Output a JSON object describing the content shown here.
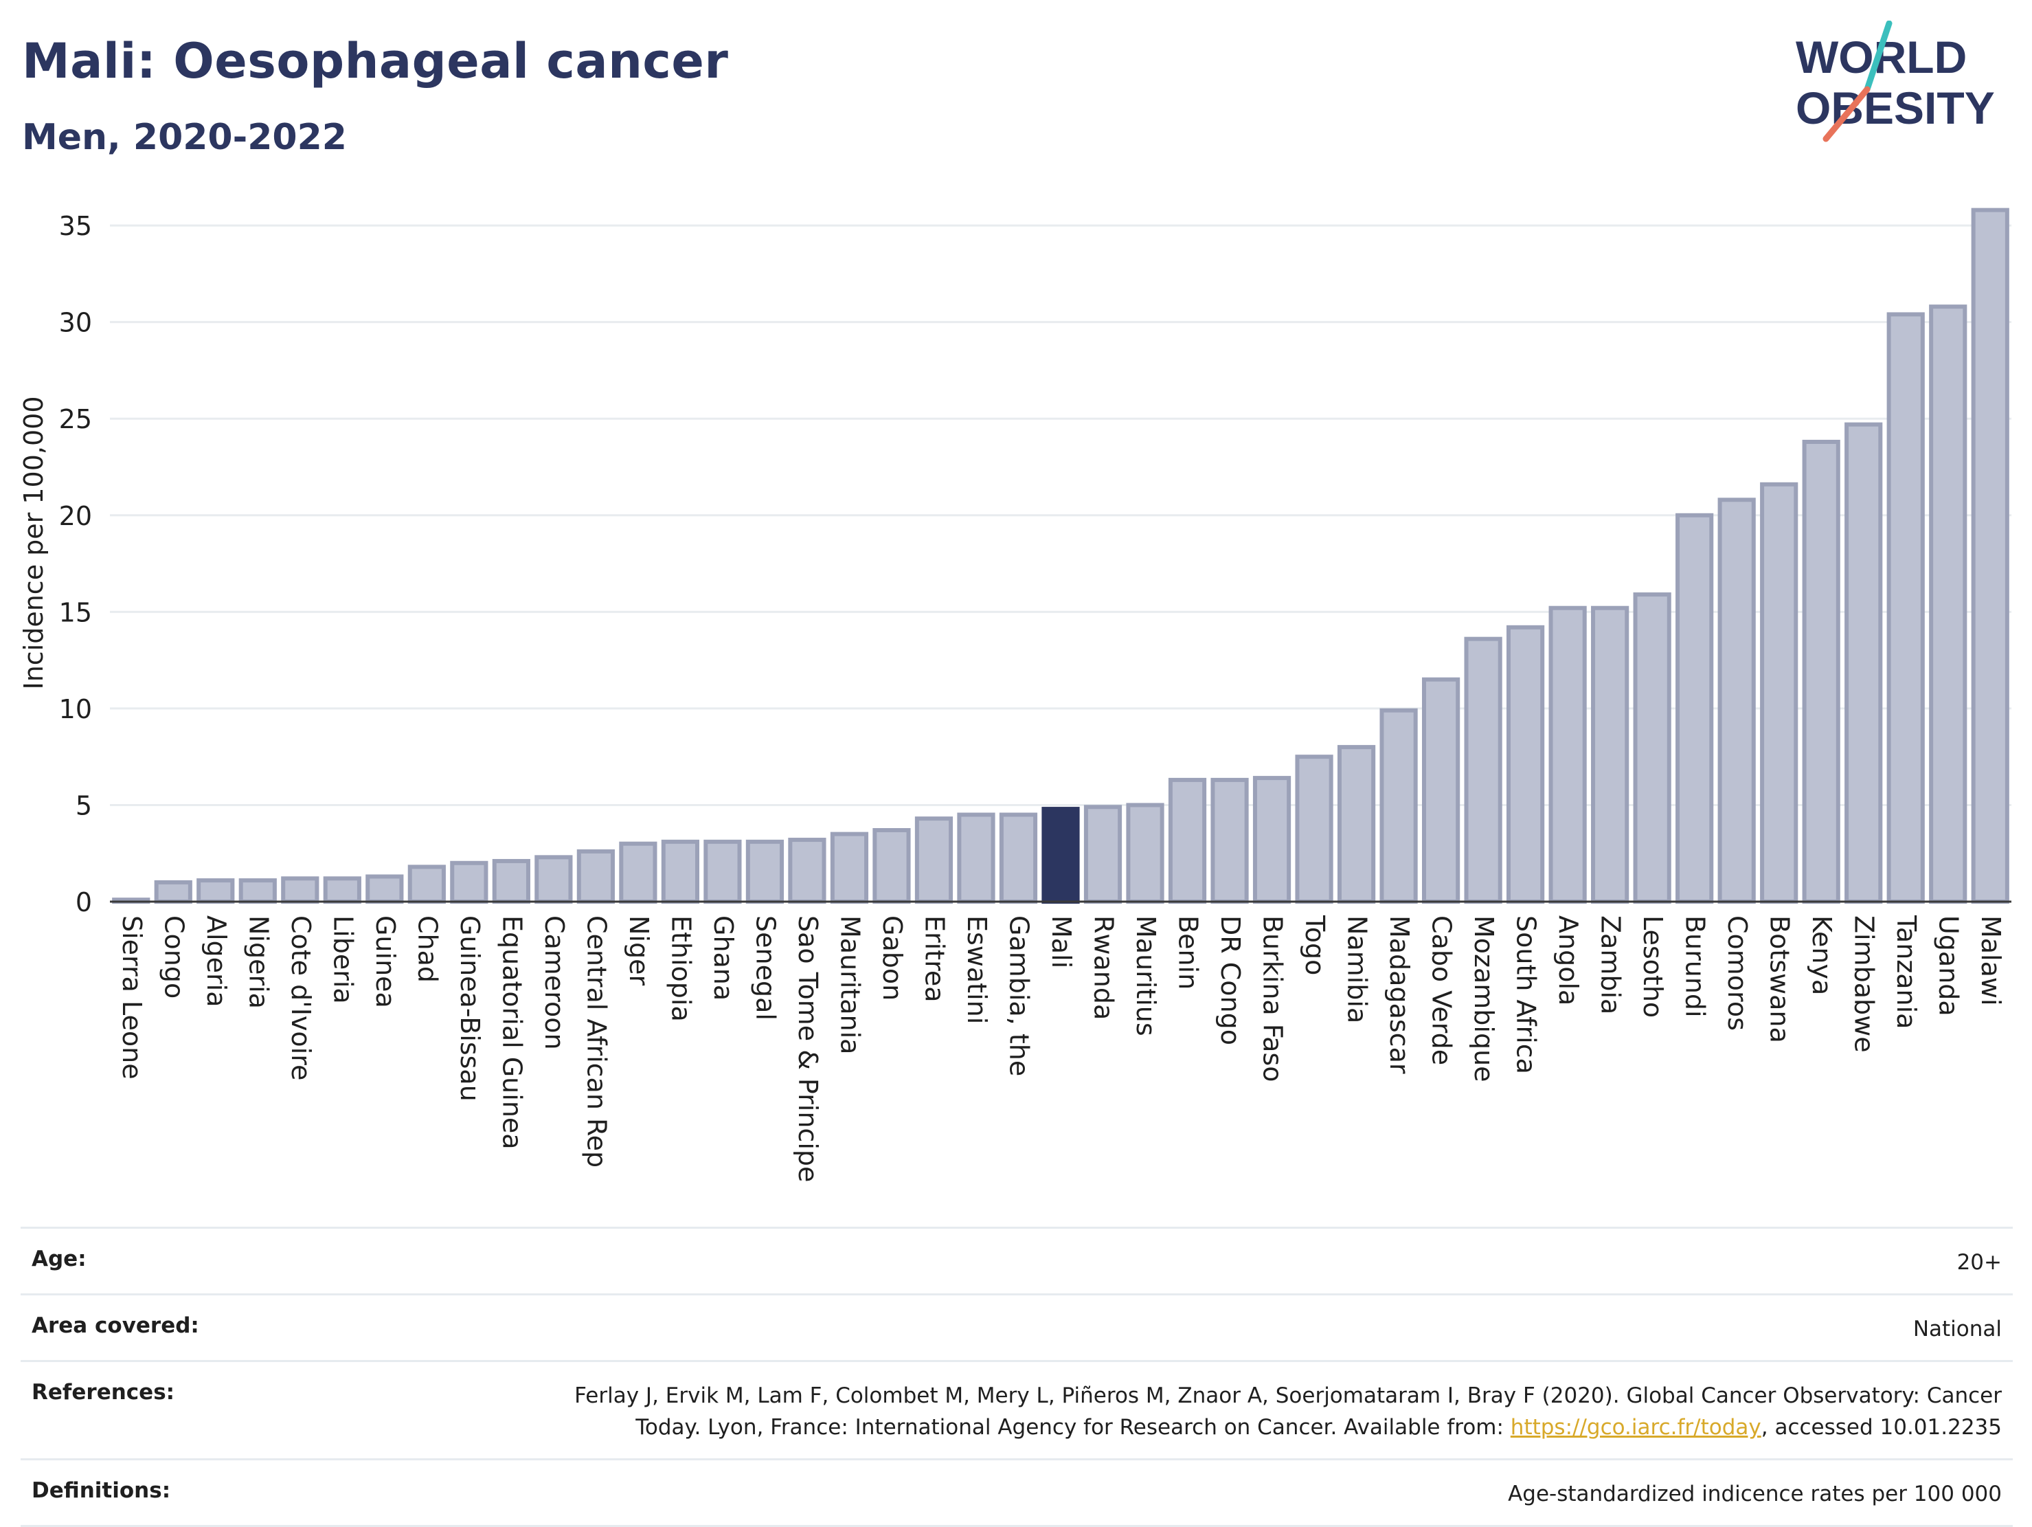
{
  "header": {
    "title": "Mali: Oesophageal cancer",
    "subtitle": "Men, 2020-2022"
  },
  "logo": {
    "line1": "WORLD",
    "line2": "OBESITY"
  },
  "colors": {
    "title": "#2c3660",
    "bar_fill": "#bcc1d2",
    "bar_stroke": "#9ba1b8",
    "highlight": "#2c3660",
    "grid": "#e8ecef",
    "link": "#d8a92a",
    "logo_teal": "#3bbfbd",
    "logo_coral": "#e8735a"
  },
  "chart_data": {
    "type": "bar",
    "ylabel": "Incidence per 100,000",
    "xlabel": "",
    "ylim": [
      0,
      36
    ],
    "yticks": [
      0,
      5,
      10,
      15,
      20,
      25,
      30,
      35
    ],
    "grid": true,
    "highlight": "Mali",
    "categories": [
      "Sierra Leone",
      "Congo",
      "Algeria",
      "Nigeria",
      "Cote d'Ivoire",
      "Liberia",
      "Guinea",
      "Chad",
      "Guinea-Bissau",
      "Equatorial Guinea",
      "Cameroon",
      "Central African Rep",
      "Niger",
      "Ethiopia",
      "Ghana",
      "Senegal",
      "Sao Tome & Principe",
      "Mauritania",
      "Gabon",
      "Eritrea",
      "Eswatini",
      "Gambia, the",
      "Mali",
      "Rwanda",
      "Mauritius",
      "Benin",
      "DR Congo",
      "Burkina Faso",
      "Togo",
      "Namibia",
      "Madagascar",
      "Cabo Verde",
      "Mozambique",
      "South Africa",
      "Angola",
      "Zambia",
      "Lesotho",
      "Burundi",
      "Comoros",
      "Botswana",
      "Kenya",
      "Zimbabwe",
      "Tanzania",
      "Uganda",
      "Malawi"
    ],
    "values": [
      0.1,
      1.0,
      1.1,
      1.1,
      1.2,
      1.2,
      1.3,
      1.8,
      2.0,
      2.1,
      2.3,
      2.6,
      3.0,
      3.1,
      3.1,
      3.1,
      3.2,
      3.5,
      3.7,
      4.3,
      4.5,
      4.5,
      4.8,
      4.9,
      5.0,
      6.3,
      6.3,
      6.4,
      7.5,
      8.0,
      9.9,
      11.5,
      13.6,
      14.2,
      15.2,
      15.2,
      15.9,
      20.0,
      20.8,
      21.6,
      23.8,
      24.7,
      30.4,
      30.8,
      35.8
    ]
  },
  "info": {
    "age_label": "Age:",
    "age_value": "20+",
    "area_label": "Area covered:",
    "area_value": "National",
    "references_label": "References:",
    "references_line1": "Ferlay J, Ervik M, Lam F, Colombet M, Mery L, Piñeros M, Znaor A, Soerjomataram I, Bray F (2020). Global Cancer Observatory: Cancer",
    "references_line2_pre": "Today. Lyon, France: International Agency for Research on Cancer. Available from: ",
    "references_link": "https://gco.iarc.fr/today",
    "references_line2_post": ", accessed 10.01.2235",
    "definitions_label": "Definitions:",
    "definitions_value": "Age-standardized indicence rates per 100 000"
  }
}
